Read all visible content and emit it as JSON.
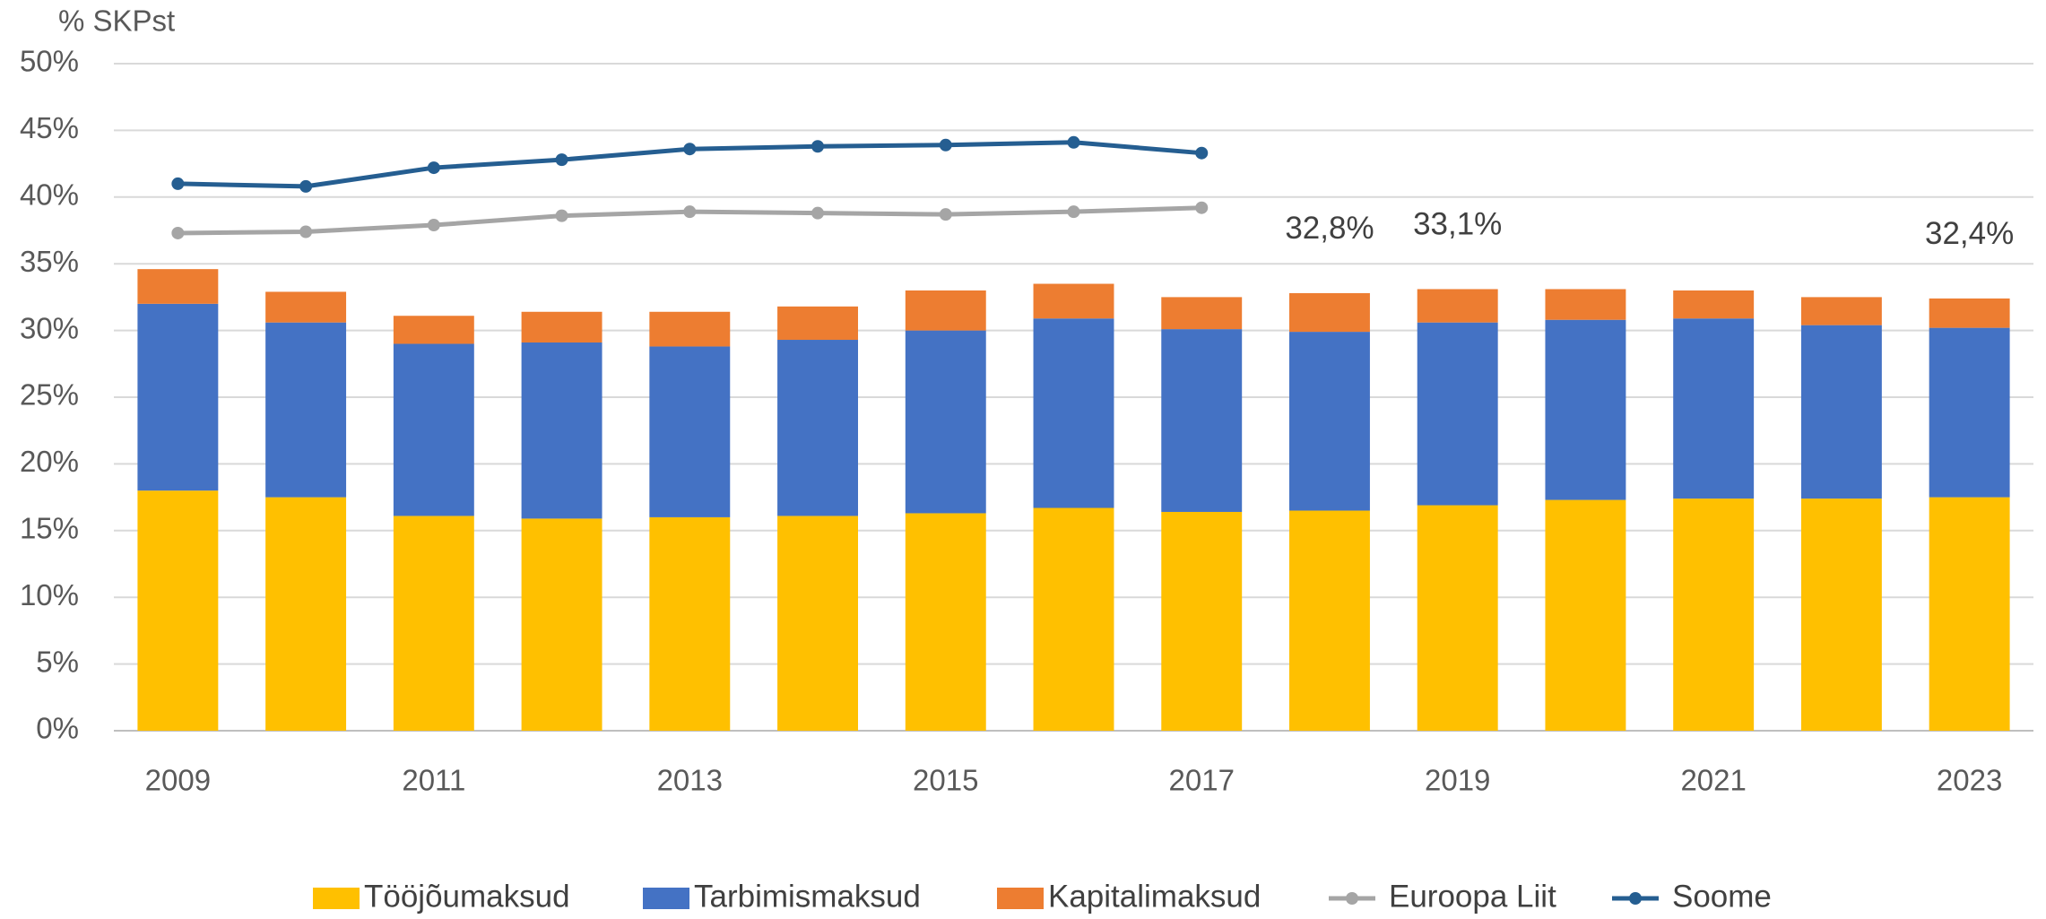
{
  "chart_data": {
    "type": "bar",
    "stacked": true,
    "y_axis_title": "% SKPst",
    "categories": [
      "2009",
      null,
      "2011",
      null,
      "2013",
      null,
      "2015",
      null,
      "2017",
      null,
      "2019",
      null,
      "2021",
      null,
      "2023"
    ],
    "series": [
      {
        "name": "Tööjõumaksud",
        "color": "#FFC000",
        "values": [
          18.0,
          17.5,
          16.1,
          15.9,
          16.0,
          16.1,
          16.3,
          16.7,
          16.4,
          16.5,
          16.9,
          17.3,
          17.4,
          17.4,
          17.5
        ]
      },
      {
        "name": "Tarbimismaksud",
        "color": "#4472C4",
        "values": [
          14.0,
          13.1,
          12.9,
          13.2,
          12.8,
          13.2,
          13.7,
          14.2,
          13.7,
          13.4,
          13.7,
          13.5,
          13.5,
          13.0,
          12.7
        ]
      },
      {
        "name": "Kapitalimaksud",
        "color": "#ED7D31",
        "values": [
          2.6,
          2.3,
          2.1,
          2.3,
          2.6,
          2.5,
          3.0,
          2.6,
          2.4,
          2.9,
          2.5,
          2.3,
          2.1,
          2.1,
          2.2
        ]
      },
      {
        "name": "Euroopa Liit",
        "type": "line",
        "color": "#A5A5A5",
        "values": [
          37.3,
          37.4,
          37.9,
          38.6,
          38.9,
          38.8,
          38.7,
          38.9,
          39.2,
          null,
          null,
          null,
          null,
          null,
          null
        ]
      },
      {
        "name": "Soome",
        "type": "line",
        "color": "#255E91",
        "values": [
          41.0,
          40.8,
          42.2,
          42.8,
          43.6,
          43.8,
          43.9,
          44.1,
          43.3,
          null,
          null,
          null,
          null,
          null,
          null
        ]
      }
    ],
    "total_labels": [
      null,
      null,
      null,
      null,
      null,
      null,
      null,
      null,
      null,
      "32,8%",
      "33,1%",
      null,
      null,
      null,
      "32,4%"
    ],
    "ylim": [
      0,
      50
    ],
    "yticks": [
      {
        "value": 0,
        "label": "0%"
      },
      {
        "value": 5,
        "label": "5%"
      },
      {
        "value": 10,
        "label": "10%"
      },
      {
        "value": 15,
        "label": "15%"
      },
      {
        "value": 20,
        "label": "20%"
      },
      {
        "value": 25,
        "label": "25%"
      },
      {
        "value": 30,
        "label": "30%"
      },
      {
        "value": 35,
        "label": "35%"
      },
      {
        "value": 40,
        "label": "40%"
      },
      {
        "value": 45,
        "label": "45%"
      },
      {
        "value": 50,
        "label": "50%"
      }
    ],
    "grid": true,
    "legend": "bottom"
  }
}
